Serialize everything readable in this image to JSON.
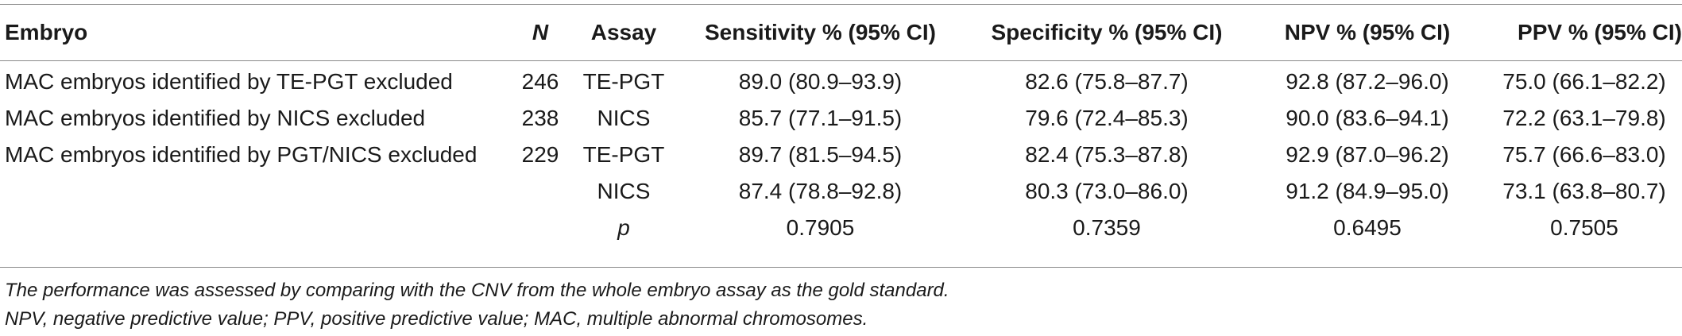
{
  "table": {
    "headers": [
      "Embryo",
      "N",
      "Assay",
      "Sensitivity % (95% CI)",
      "Specificity % (95% CI)",
      "NPV % (95% CI)",
      "PPV % (95% CI)"
    ],
    "rows": [
      [
        "MAC embryos identified by TE-PGT excluded",
        "246",
        "TE-PGT",
        "89.0 (80.9–93.9)",
        "82.6 (75.8–87.7)",
        "92.8 (87.2–96.0)",
        "75.0 (66.1–82.2)"
      ],
      [
        "MAC embryos identified by NICS excluded",
        "238",
        "NICS",
        "85.7 (77.1–91.5)",
        "79.6 (72.4–85.3)",
        "90.0 (83.6–94.1)",
        "72.2 (63.1–79.8)"
      ],
      [
        "MAC embryos identified by PGT/NICS excluded",
        "229",
        "TE-PGT",
        "89.7 (81.5–94.5)",
        "82.4 (75.3–87.8)",
        "92.9 (87.0–96.2)",
        "75.7 (66.6–83.0)"
      ],
      [
        "",
        "",
        "NICS",
        "87.4 (78.8–92.8)",
        "80.3 (73.0–86.0)",
        "91.2 (84.9–95.0)",
        "73.1 (63.8–80.7)"
      ],
      [
        "",
        "",
        "p",
        "0.7905",
        "0.7359",
        "0.6495",
        "0.7505"
      ]
    ]
  },
  "footnotes": [
    "The performance was assessed by comparing with the CNV from the whole embryo assay as the gold standard.",
    "NPV, negative predictive value; PPV, positive predictive value; MAC, multiple abnormal chromosomes."
  ]
}
